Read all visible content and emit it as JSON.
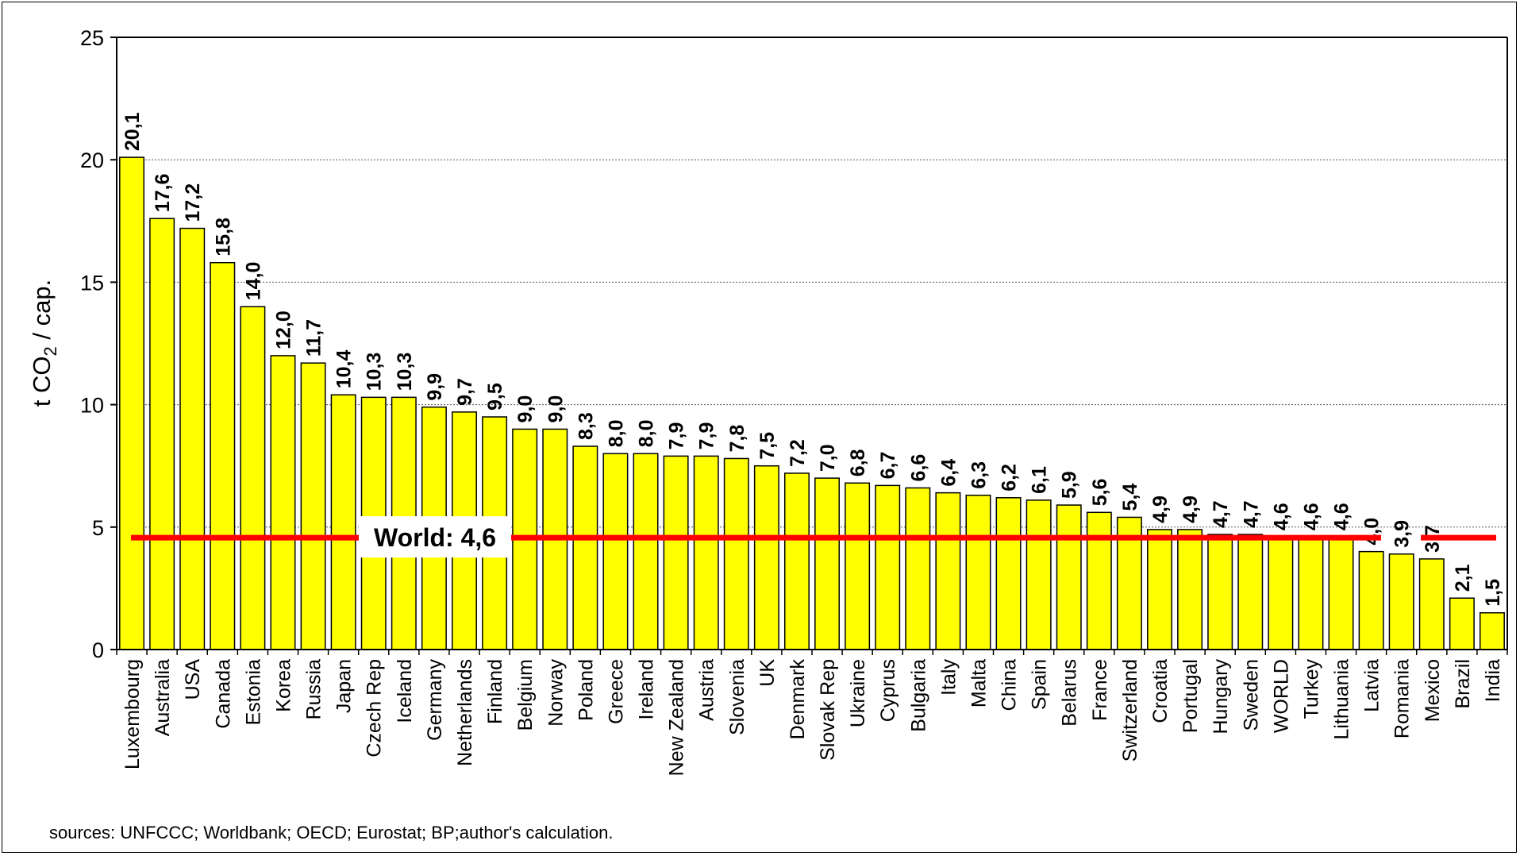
{
  "chart_data": {
    "type": "bar",
    "categories": [
      "Luxembourg",
      "Australia",
      "USA",
      "Canada",
      "Estonia",
      "Korea",
      "Russia",
      "Japan",
      "Czech Rep",
      "Iceland",
      "Germany",
      "Netherlands",
      "Finland",
      "Belgium",
      "Norway",
      "Poland",
      "Greece",
      "Ireland",
      "New Zealand",
      "Austria",
      "Slovenia",
      "UK",
      "Denmark",
      "Slovak Rep",
      "Ukraine",
      "Cyprus",
      "Bulgaria",
      "Italy",
      "Malta",
      "China",
      "Spain",
      "Belarus",
      "France",
      "Switzerland",
      "Croatia",
      "Portugal",
      "Hungary",
      "Sweden",
      "WORLD",
      "Turkey",
      "Lithuania",
      "Latvia",
      "Romania",
      "Mexico",
      "Brazil",
      "India"
    ],
    "values": [
      20.1,
      17.6,
      17.2,
      15.8,
      14.0,
      12.0,
      11.7,
      10.4,
      10.3,
      10.3,
      9.9,
      9.7,
      9.5,
      9.0,
      9.0,
      8.3,
      8.0,
      8.0,
      7.9,
      7.9,
      7.8,
      7.5,
      7.2,
      7.0,
      6.8,
      6.7,
      6.6,
      6.4,
      6.3,
      6.2,
      6.1,
      5.9,
      5.6,
      5.4,
      4.9,
      4.9,
      4.7,
      4.7,
      4.6,
      4.6,
      4.6,
      4.0,
      3.9,
      3.7,
      2.1,
      1.5
    ],
    "value_labels": [
      "20,1",
      "17,6",
      "17,2",
      "15,8",
      "14,0",
      "12,0",
      "11,7",
      "10,4",
      "10,3",
      "10,3",
      "9,9",
      "9,7",
      "9,5",
      "9,0",
      "9,0",
      "8,3",
      "8,0",
      "8,0",
      "7,9",
      "7,9",
      "7,8",
      "7,5",
      "7,2",
      "7,0",
      "6,8",
      "6,7",
      "6,6",
      "6,4",
      "6,3",
      "6,2",
      "6,1",
      "5,9",
      "5,6",
      "5,4",
      "4,9",
      "4,9",
      "4,7",
      "4,7",
      "4,6",
      "4,6",
      "4,6",
      "4,0",
      "3,9",
      "3,7",
      "2,1",
      "1,5"
    ],
    "ylabel_main": "t CO",
    "ylabel_sub": "2",
    "ylabel_tail": " / cap.",
    "ylim": [
      0,
      25
    ],
    "yticks": [
      "0",
      "5",
      "10",
      "15",
      "20",
      "25"
    ],
    "grid": true,
    "bar_color": "#FFFF00",
    "reference_line": {
      "value": 4.6,
      "label": "World: 4,6",
      "color": "#FF0000"
    }
  },
  "source": "sources: UNFCCC; Worldbank; OECD; Eurostat; BP;author's calculation."
}
